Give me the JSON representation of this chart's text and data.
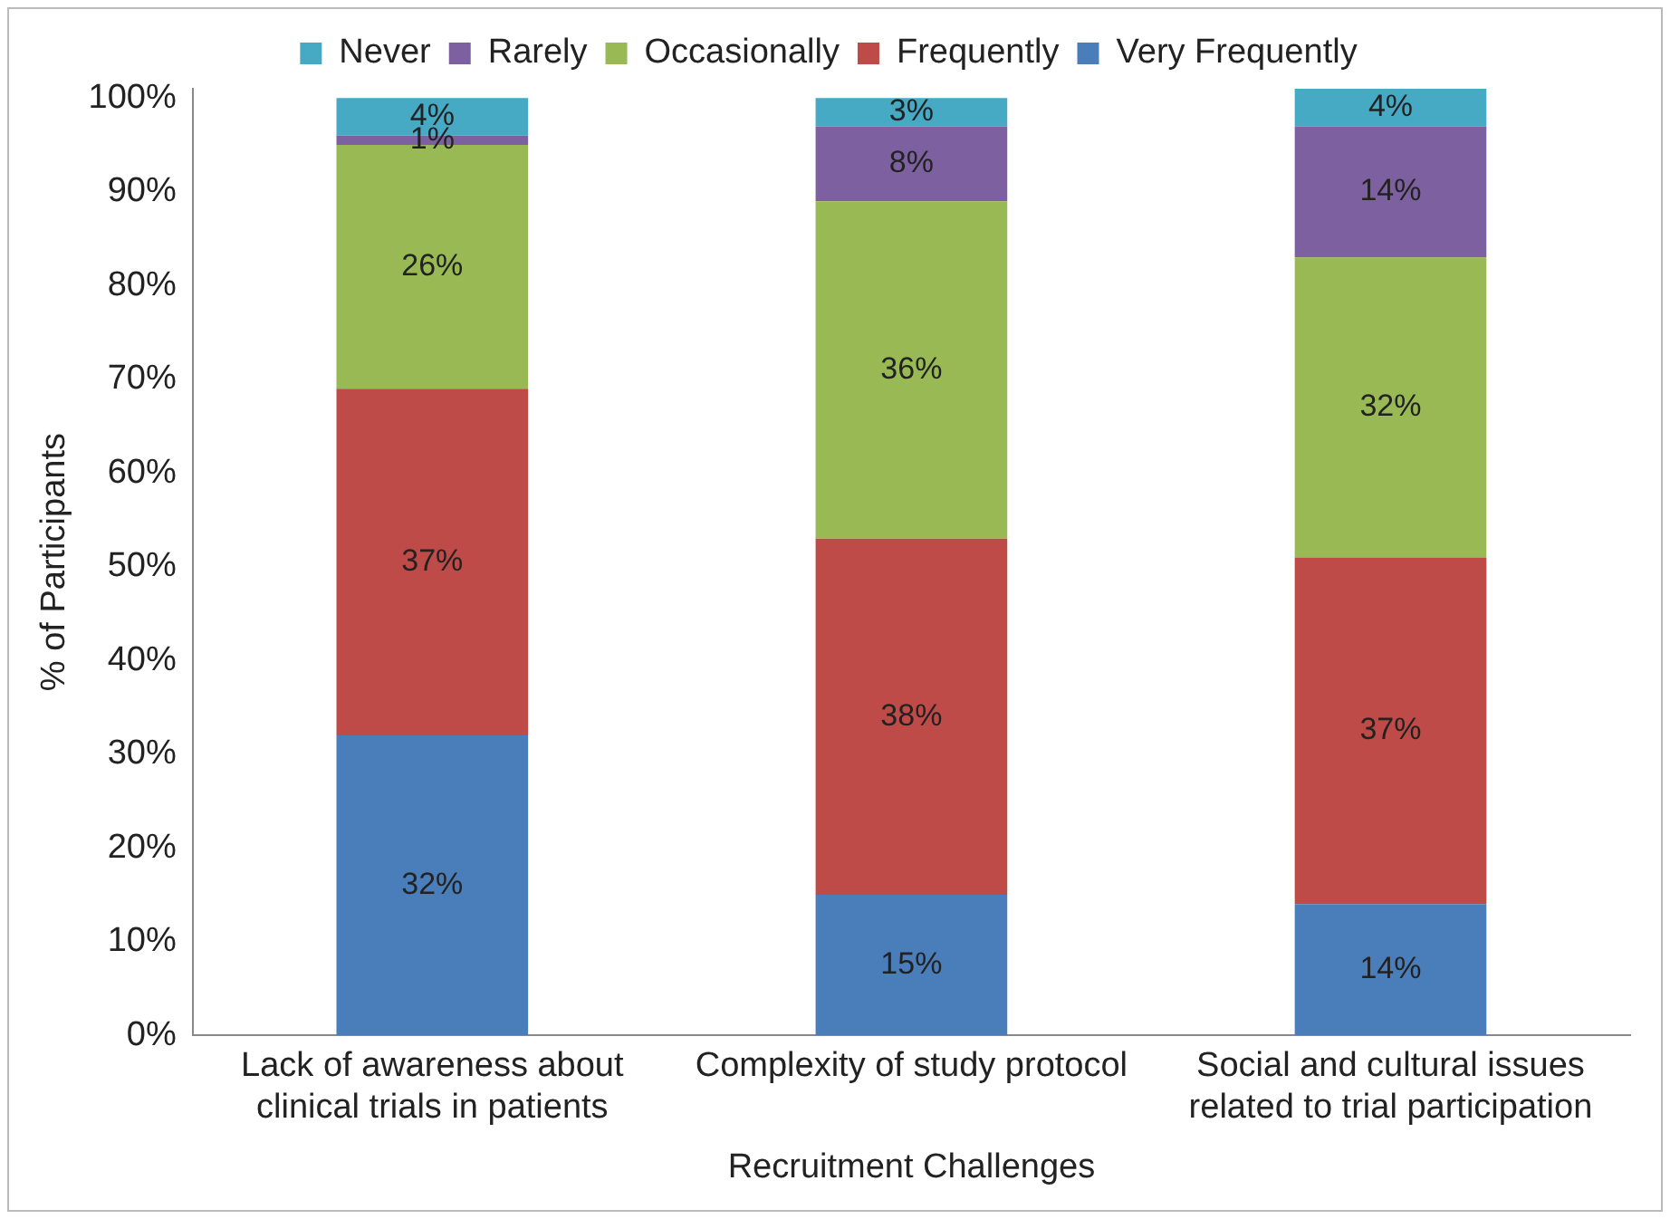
{
  "chart_data": {
    "type": "bar",
    "stacked": true,
    "xlabel": "Recruitment Challenges",
    "ylabel": "% of Participants",
    "categories": [
      "Lack of awareness about clinical trials in patients",
      "Complexity of study protocol",
      "Social and cultural issues related to trial participation"
    ],
    "series": [
      {
        "name": "Very Frequently",
        "color": "#4a7ebb",
        "values": [
          32,
          15,
          14
        ],
        "value_labels": [
          "32%",
          "15%",
          "14%"
        ]
      },
      {
        "name": "Frequently",
        "color": "#be4b48",
        "values": [
          37,
          38,
          37
        ],
        "value_labels": [
          "37%",
          "38%",
          "37%"
        ]
      },
      {
        "name": "Occasionally",
        "color": "#98b954",
        "values": [
          26,
          36,
          32
        ],
        "value_labels": [
          "26%",
          "36%",
          "32%"
        ]
      },
      {
        "name": "Rarely",
        "color": "#7d60a0",
        "values": [
          1,
          8,
          14
        ],
        "value_labels": [
          "1%",
          "8%",
          "14%"
        ]
      },
      {
        "name": "Never",
        "color": "#46aac5",
        "values": [
          4,
          3,
          4
        ],
        "value_labels": [
          "4%",
          "3%",
          "4%"
        ]
      }
    ],
    "ylim": [
      0,
      101
    ],
    "yticks": [
      {
        "value": 0,
        "label": "0%"
      },
      {
        "value": 10,
        "label": "10%"
      },
      {
        "value": 20,
        "label": "20%"
      },
      {
        "value": 30,
        "label": "30%"
      },
      {
        "value": 40,
        "label": "40%"
      },
      {
        "value": 50,
        "label": "50%"
      },
      {
        "value": 60,
        "label": "60%"
      },
      {
        "value": 70,
        "label": "70%"
      },
      {
        "value": 80,
        "label": "80%"
      },
      {
        "value": 90,
        "label": "90%"
      },
      {
        "value": 100,
        "label": "100%"
      }
    ],
    "grid": false,
    "legend": "top"
  }
}
